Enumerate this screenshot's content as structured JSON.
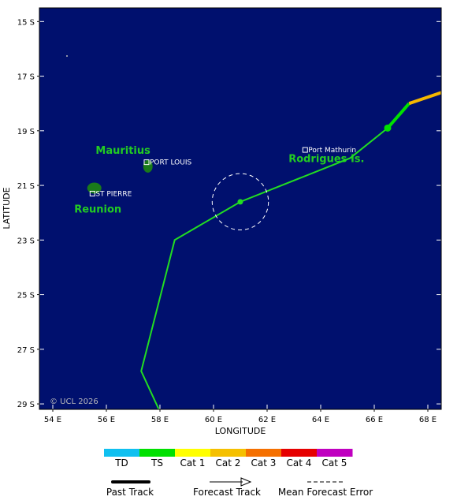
{
  "map": {
    "bounds": {
      "lon_min": 53.5,
      "lon_max": 68.5,
      "lat_top": -14.5,
      "lat_bottom": -29.2
    },
    "ocean_color": "#00106e",
    "x_label": "LONGITUDE",
    "y_label": "LATITUDE",
    "copyright": "© UCL 2026",
    "x_ticks": [
      {
        "value": 54,
        "label": "54 E"
      },
      {
        "value": 56,
        "label": "56 E"
      },
      {
        "value": 58,
        "label": "58 E"
      },
      {
        "value": 60,
        "label": "60 E"
      },
      {
        "value": 62,
        "label": "62 E"
      },
      {
        "value": 64,
        "label": "64 E"
      },
      {
        "value": 66,
        "label": "66 E"
      },
      {
        "value": 68,
        "label": "68 E"
      }
    ],
    "y_ticks": [
      {
        "value": -15,
        "label": "15 S"
      },
      {
        "value": -17,
        "label": "17 S"
      },
      {
        "value": -19,
        "label": "19 S"
      },
      {
        "value": -21,
        "label": "21 S"
      },
      {
        "value": -23,
        "label": "23 S"
      },
      {
        "value": -25,
        "label": "25 S"
      },
      {
        "value": -27,
        "label": "27 S"
      },
      {
        "value": -29,
        "label": "29 S"
      }
    ]
  },
  "islands": [
    {
      "name": "Mauritius",
      "label": "Mauritius",
      "lon": 57.55,
      "lat": -20.3,
      "label_lon": 55.6,
      "label_lat": -19.85,
      "color": "#1a7a1a"
    },
    {
      "name": "Reunion",
      "label": "Reunion",
      "lon": 55.55,
      "lat": -21.1,
      "label_lon": 54.8,
      "label_lat": -22.0,
      "color": "#1a7a1a"
    },
    {
      "name": "Rodrigues",
      "label": "Rodrigues Is.",
      "lon": 63.4,
      "lat": -19.7,
      "label_lon": 62.8,
      "label_lat": -20.15,
      "color": "#1a7a1a"
    }
  ],
  "places": [
    {
      "label": "PORT LOUIS",
      "lon": 57.5,
      "lat": -20.15
    },
    {
      "label": "ST PIERRE",
      "lon": 55.48,
      "lat": -21.3
    },
    {
      "label": "Port Mathurin",
      "lon": 63.42,
      "lat": -19.7
    }
  ],
  "tracks": {
    "past_cat1": {
      "color": "#f5b800",
      "points": [
        [
          68.5,
          -17.6
        ],
        [
          67.3,
          -18.0
        ]
      ]
    },
    "past_ts": {
      "color": "#00e000",
      "points": [
        [
          67.3,
          -18.0
        ],
        [
          66.5,
          -18.9
        ]
      ]
    },
    "forecast": {
      "color": "#22dd22",
      "points": [
        [
          66.5,
          -18.9
        ],
        [
          65.1,
          -20.0
        ],
        [
          61.0,
          -21.6
        ],
        [
          58.55,
          -23.0
        ],
        [
          57.3,
          -27.8
        ],
        [
          58.1,
          -29.5
        ]
      ]
    },
    "current_position": {
      "lon": 66.5,
      "lat": -18.9
    },
    "forecast_point": {
      "lon": 61.0,
      "lat": -21.6
    },
    "error_circle": {
      "lon": 61.0,
      "lat": -21.6,
      "radius_deg": 1.05
    }
  },
  "intensity_legend": [
    {
      "label": "TD",
      "color": "#10c0f0"
    },
    {
      "label": "TS",
      "color": "#00e000"
    },
    {
      "label": "Cat 1",
      "color": "#ffff00"
    },
    {
      "label": "Cat 2",
      "color": "#f5c000"
    },
    {
      "label": "Cat 3",
      "color": "#f57000"
    },
    {
      "label": "Cat 4",
      "color": "#e60000"
    },
    {
      "label": "Cat 5",
      "color": "#c000c0"
    }
  ],
  "track_legend": {
    "past": "Past Track",
    "forecast": "Forecast Track",
    "error": "Mean Forecast Error"
  }
}
